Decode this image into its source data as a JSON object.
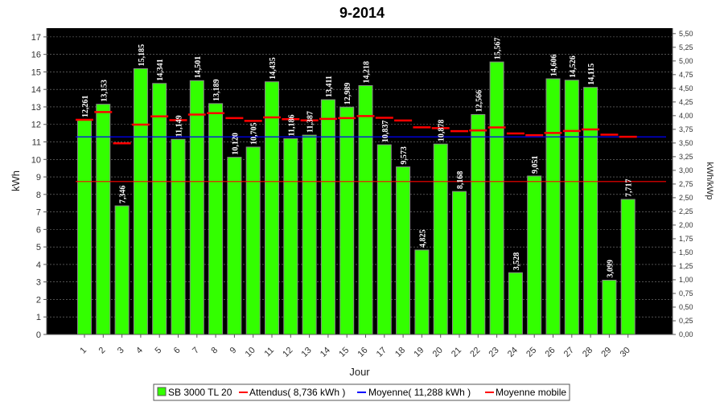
{
  "chart_data": {
    "type": "bar",
    "title": "9-2014",
    "xlabel": "Jour",
    "ylabel": "kWh",
    "y2label": "kWh/kWp",
    "ylim": [
      0,
      17.5
    ],
    "y2lim": [
      0,
      5.6
    ],
    "categories": [
      "1",
      "2",
      "3",
      "4",
      "5",
      "6",
      "7",
      "8",
      "9",
      "10",
      "11",
      "12",
      "13",
      "14",
      "15",
      "16",
      "17",
      "18",
      "19",
      "20",
      "21",
      "22",
      "23",
      "24",
      "25",
      "26",
      "27",
      "28",
      "29",
      "30"
    ],
    "series": [
      {
        "name": "SB 3000 TL 20",
        "type": "bar",
        "color": "#33ff00",
        "values": [
          12.261,
          13.153,
          7.346,
          15.185,
          14.341,
          11.149,
          14.501,
          13.189,
          10.12,
          10.705,
          14.435,
          11.186,
          11.387,
          13.411,
          12.989,
          14.218,
          10.837,
          9.573,
          4.825,
          10.878,
          8.168,
          12.566,
          15.567,
          3.528,
          9.051,
          14.606,
          14.526,
          14.115,
          3.099,
          7.717
        ],
        "labels": [
          "12,261",
          "13,153",
          "7,346",
          "15,185",
          "14,341",
          "11,149",
          "14,501",
          "13,189",
          "10,120",
          "10,705",
          "14,435",
          "11,186",
          "11,387",
          "13,411",
          "12,989",
          "14,218",
          "10,837",
          "9,573",
          "4,825",
          "10,878",
          "8,168",
          "12,566",
          "15,567",
          "3,528",
          "9,051",
          "14,606",
          "14,526",
          "14,115",
          "3,099",
          "7,717"
        ]
      },
      {
        "name": "Moyenne mobile",
        "type": "step",
        "color": "#ff0000",
        "values": [
          12.261,
          12.707,
          10.92,
          11.986,
          12.457,
          12.239,
          12.562,
          12.645,
          12.364,
          12.198,
          12.401,
          12.299,
          12.229,
          12.314,
          12.359,
          12.475,
          12.378,
          12.222,
          11.833,
          11.785,
          11.613,
          11.656,
          11.827,
          11.481,
          11.384,
          11.509,
          11.624,
          11.713,
          11.416,
          11.292
        ]
      },
      {
        "name": "Attendus( 8,736 kWh )",
        "type": "hline",
        "color": "#ff0000",
        "value": 8.736
      },
      {
        "name": "Moyenne( 11,288 kWh )",
        "type": "hline",
        "color": "#0000ff",
        "value": 11.288
      }
    ],
    "yticks": [
      "0",
      "1",
      "2",
      "3",
      "4",
      "5",
      "6",
      "7",
      "8",
      "9",
      "10",
      "11",
      "12",
      "13",
      "14",
      "15",
      "16",
      "17"
    ],
    "y2ticks": [
      "0,00",
      "0,25",
      "0,50",
      "0,75",
      "1,00",
      "1,25",
      "1,50",
      "1,75",
      "2,00",
      "2,25",
      "2,50",
      "2,75",
      "3,00",
      "3,25",
      "3,50",
      "3,75",
      "4,00",
      "4,25",
      "4,50",
      "4,75",
      "5,00",
      "5,25",
      "5,50"
    ],
    "grid": true,
    "plot_background": "#000000",
    "legend_position": "bottom-center",
    "legend": [
      "SB 3000 TL 20",
      "Attendus( 8,736 kWh )",
      "Moyenne( 11,288 kWh )",
      "Moyenne mobile"
    ]
  }
}
